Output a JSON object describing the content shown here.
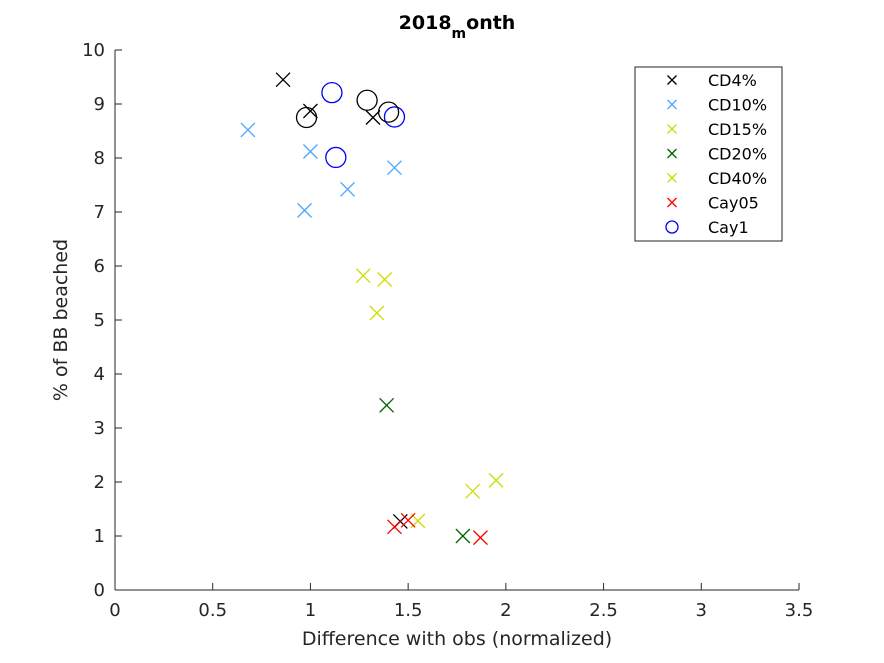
{
  "chart_data": {
    "type": "scatter",
    "title_main": "2018",
    "title_sub": "m",
    "title_tail": "onth",
    "xlabel": "Difference with obs (normalized)",
    "ylabel": "% of BB beached",
    "xlim": [
      0,
      3.5
    ],
    "ylim": [
      0,
      10
    ],
    "xticks": [
      0,
      0.5,
      1,
      1.5,
      2,
      2.5,
      3,
      3.5
    ],
    "xtick_labels": [
      "0",
      "0.5",
      "1",
      "1.5",
      "2",
      "2.5",
      "3",
      "3.5"
    ],
    "yticks": [
      0,
      1,
      2,
      3,
      4,
      5,
      6,
      7,
      8,
      9,
      10
    ],
    "ytick_labels": [
      "0",
      "1",
      "2",
      "3",
      "4",
      "5",
      "6",
      "7",
      "8",
      "9",
      "10"
    ],
    "grid": false,
    "legend_position": "top-right",
    "series": [
      {
        "name": "CD4%",
        "marker": "x",
        "color": "#000000",
        "points": [
          [
            0.86,
            9.45
          ],
          [
            1.0,
            8.87
          ],
          [
            1.32,
            8.75
          ],
          [
            1.46,
            1.27
          ]
        ]
      },
      {
        "name": "CD10%",
        "marker": "x",
        "color": "#4da6ff",
        "points": [
          [
            0.68,
            8.52
          ],
          [
            1.0,
            8.12
          ],
          [
            0.97,
            7.03
          ],
          [
            1.19,
            7.42
          ],
          [
            1.43,
            7.82
          ]
        ]
      },
      {
        "name": "CD15%",
        "marker": "x",
        "color": "#ccdd00",
        "points": [
          [
            1.27,
            5.82
          ],
          [
            1.38,
            5.75
          ],
          [
            1.34,
            5.13
          ],
          [
            1.55,
            1.28
          ]
        ]
      },
      {
        "name": "CD20%",
        "marker": "x",
        "color": "#006400",
        "points": [
          [
            1.39,
            3.42
          ],
          [
            1.78,
            1.0
          ]
        ]
      },
      {
        "name": "CD40%",
        "marker": "x",
        "color": "#ccdd00",
        "points": [
          [
            1.83,
            1.83
          ],
          [
            1.95,
            2.03
          ]
        ]
      },
      {
        "name": "Cay05",
        "marker": "x",
        "color": "#ff0000",
        "points": [
          [
            1.43,
            1.17
          ],
          [
            1.5,
            1.29
          ],
          [
            1.87,
            0.97
          ]
        ]
      },
      {
        "name": "Cay1",
        "marker": "o",
        "color": "#0000ff",
        "points": [
          [
            1.11,
            9.21
          ],
          [
            1.13,
            8.01
          ],
          [
            1.43,
            8.76
          ]
        ]
      }
    ],
    "extra_markers": {
      "marker": "o",
      "color": "#000000",
      "points": [
        [
          0.98,
          8.75
        ],
        [
          1.29,
          9.07
        ],
        [
          1.4,
          8.85
        ]
      ]
    }
  }
}
